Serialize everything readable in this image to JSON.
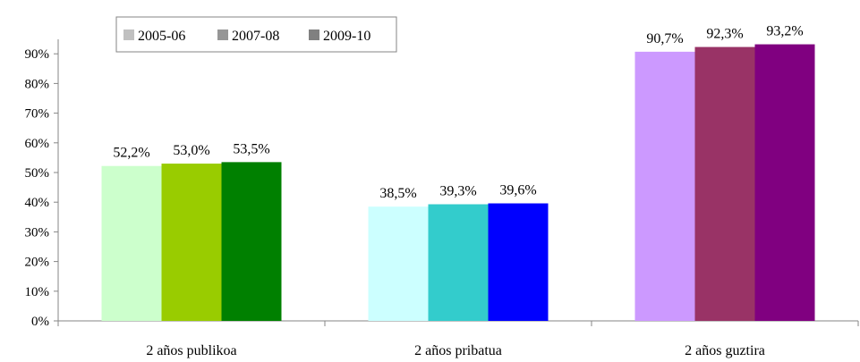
{
  "chart_data": {
    "type": "bar",
    "categories": [
      "2 años publikoa",
      "2 años pribatua",
      "2 años guztira"
    ],
    "series": [
      {
        "name": "2005-06",
        "values": [
          52.2,
          38.5,
          90.7
        ],
        "labels": [
          "52,2%",
          "38,5%",
          "90,7%"
        ]
      },
      {
        "name": "2007-08",
        "values": [
          53.0,
          39.3,
          92.3
        ],
        "labels": [
          "53,0%",
          "39,3%",
          "92,3%"
        ]
      },
      {
        "name": "2009-10",
        "values": [
          53.5,
          39.6,
          93.2
        ],
        "labels": [
          "53,5%",
          "39,6%",
          "93,2%"
        ]
      }
    ],
    "bar_colors": [
      [
        "#ccffcc",
        "#99cc00",
        "#008000"
      ],
      [
        "#ccffff",
        "#33cccc",
        "#0000ff"
      ],
      [
        "#cc99ff",
        "#993366",
        "#800080"
      ]
    ],
    "legend_colors": [
      "#c0c0c0",
      "#969696",
      "#808080"
    ],
    "y_ticks": [
      "0%",
      "10%",
      "20%",
      "30%",
      "40%",
      "50%",
      "60%",
      "70%",
      "80%",
      "90%"
    ],
    "ylim": [
      0,
      100
    ],
    "grid": false,
    "legend_position": "top-left"
  }
}
